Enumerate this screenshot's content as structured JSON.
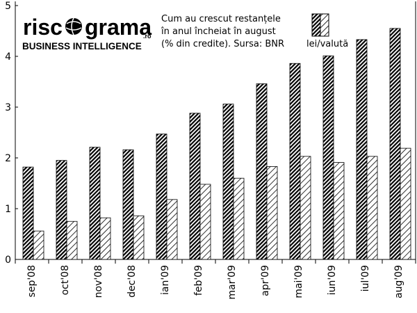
{
  "logo": {
    "wordmark_left": "risc",
    "wordmark_right": "grama",
    "suffix": ".ro",
    "tagline": "BUSINESS INTELLIGENCE"
  },
  "chart_data": {
    "type": "bar",
    "title_lines": [
      "Cum au crescut restanțele",
      "în anul încheiat în august",
      "(% din credite). Sursa: BNR"
    ],
    "legend_label": "lei/valută",
    "legend_placement": "top-right",
    "categories": [
      "sep'08",
      "oct'08",
      "nov'08",
      "dec'08",
      "ian'09",
      "feb'09",
      "mar'09",
      "apr'09",
      "mai'09",
      "iun'09",
      "iul'09",
      "aug'09"
    ],
    "series": [
      {
        "values": [
          1.82,
          1.95,
          2.21,
          2.16,
          2.47,
          2.88,
          3.06,
          3.46,
          3.86,
          4.01,
          4.33,
          4.55
        ],
        "pattern": "dense-hatch"
      },
      {
        "values": [
          0.56,
          0.75,
          0.82,
          0.86,
          1.18,
          1.48,
          1.6,
          1.83,
          2.03,
          1.91,
          2.03,
          2.19
        ],
        "pattern": "sparse-hatch"
      }
    ],
    "y_ticks": [
      0,
      1,
      2,
      3,
      4,
      5
    ],
    "ylim": [
      0,
      5
    ],
    "grid": false,
    "colors": {
      "bar_stroke": "#000000",
      "background": "#ffffff"
    }
  }
}
